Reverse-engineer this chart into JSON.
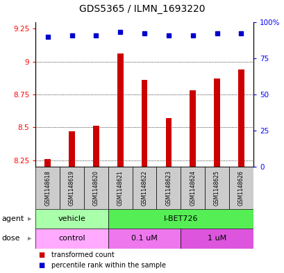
{
  "title": "GDS5365 / ILMN_1693220",
  "samples": [
    "GSM1148618",
    "GSM1148619",
    "GSM1148620",
    "GSM1148621",
    "GSM1148622",
    "GSM1148623",
    "GSM1148624",
    "GSM1148625",
    "GSM1148626"
  ],
  "transformed_counts": [
    8.26,
    8.47,
    8.51,
    9.06,
    8.86,
    8.57,
    8.78,
    8.87,
    8.94
  ],
  "percentile_ranks": [
    90,
    91,
    91,
    93,
    92,
    91,
    91,
    92,
    92
  ],
  "ylim_left": [
    8.2,
    9.3
  ],
  "ylim_right": [
    0,
    100
  ],
  "yticks_left": [
    8.25,
    8.5,
    8.75,
    9.0,
    9.25
  ],
  "yticks_right": [
    0,
    25,
    50,
    75,
    100
  ],
  "ytick_labels_left": [
    "8.25",
    "8.5",
    "8.75",
    "9",
    "9.25"
  ],
  "ytick_labels_right": [
    "0",
    "25",
    "50",
    "75",
    "100%"
  ],
  "bar_color": "#cc0000",
  "dot_color": "#0000cc",
  "agent_groups": [
    {
      "label": "vehicle",
      "start": 0,
      "end": 3,
      "color": "#aaffaa"
    },
    {
      "label": "I-BET726",
      "start": 3,
      "end": 9,
      "color": "#55ee55"
    }
  ],
  "dose_groups": [
    {
      "label": "control",
      "start": 0,
      "end": 3,
      "color": "#ffaaff"
    },
    {
      "label": "0.1 uM",
      "start": 3,
      "end": 6,
      "color": "#ee77ee"
    },
    {
      "label": "1 uM",
      "start": 6,
      "end": 9,
      "color": "#dd55dd"
    }
  ],
  "legend_items": [
    {
      "label": "transformed count",
      "color": "#cc0000"
    },
    {
      "label": "percentile rank within the sample",
      "color": "#0000cc"
    }
  ],
  "sample_bg_color": "#cccccc"
}
